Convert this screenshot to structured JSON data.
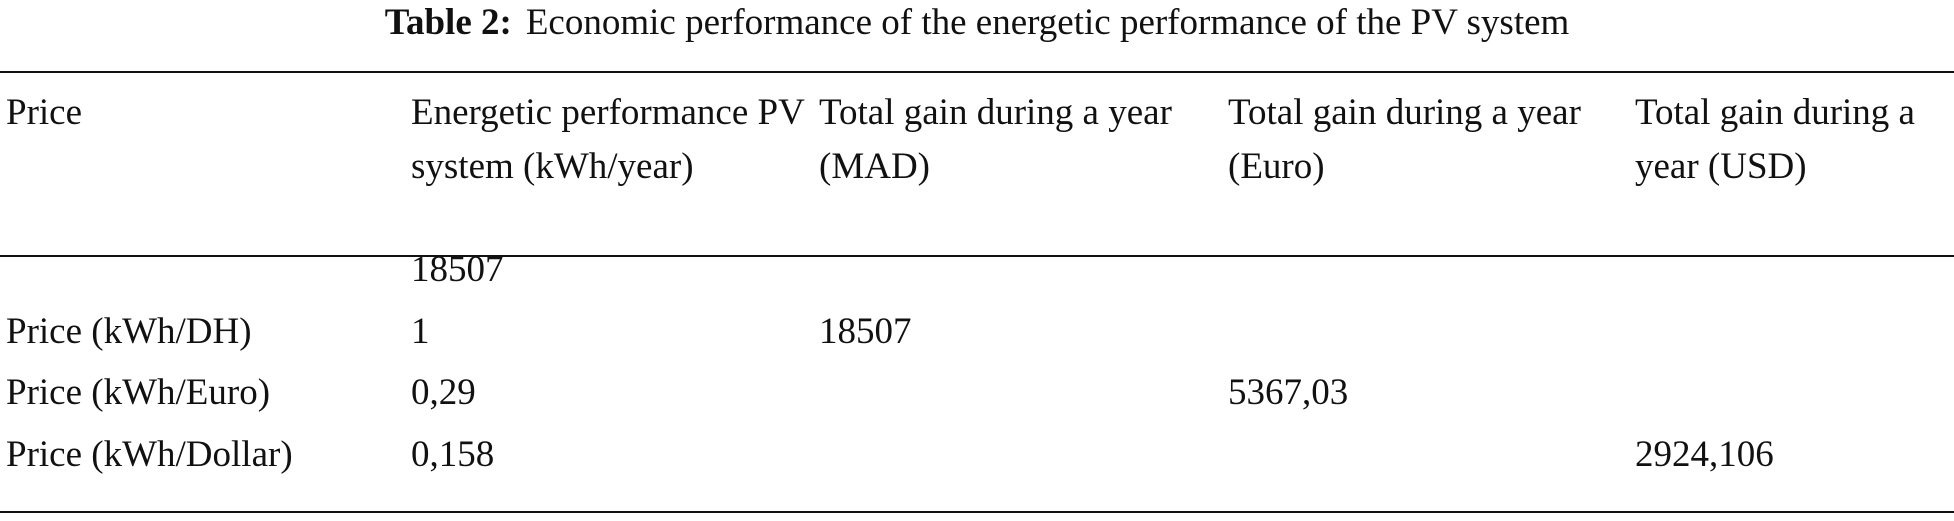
{
  "caption": {
    "label": "Table 2:",
    "text": "Economic performance of the energetic performance of the PV system"
  },
  "table": {
    "header": [
      "Price",
      "Energetic performance PV system (kWh/year)",
      "Total gain during a year (MAD)",
      "Total gain during a year (Euro)",
      "Total gain during a year (USD)"
    ],
    "rows": [
      [
        null,
        "18507",
        null,
        null,
        null
      ],
      [
        "Price (kWh/DH)",
        "1",
        "18507",
        null,
        null
      ],
      [
        "Price (kWh/Euro)",
        "0,29",
        null,
        "5367,03",
        null
      ],
      [
        "Price (kWh/Dollar)",
        "0,158",
        null,
        null,
        "2924,106"
      ]
    ]
  }
}
